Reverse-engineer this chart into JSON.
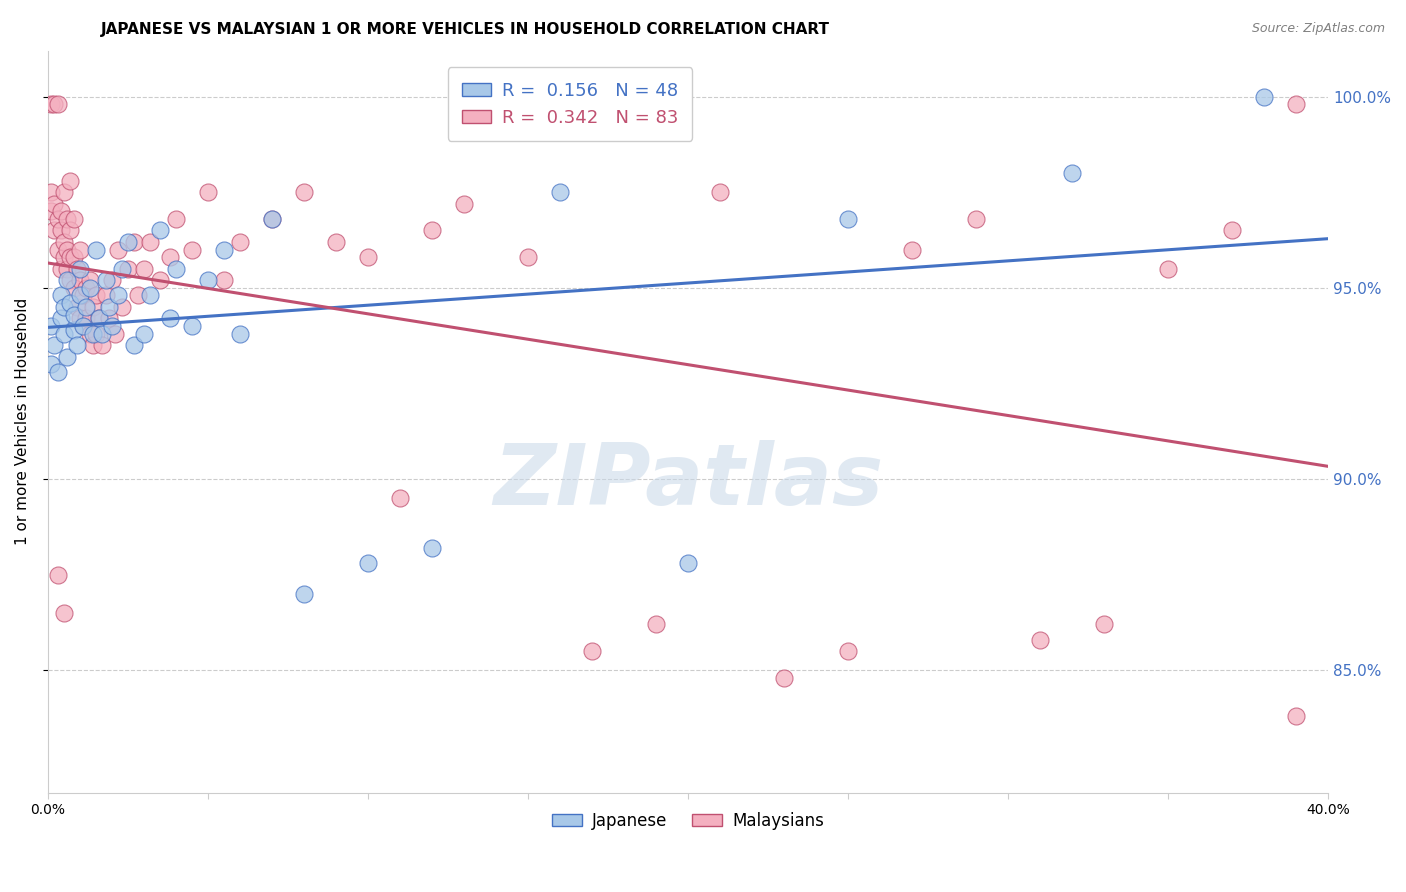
{
  "title": "JAPANESE VS MALAYSIAN 1 OR MORE VEHICLES IN HOUSEHOLD CORRELATION CHART",
  "source": "Source: ZipAtlas.com",
  "ylabel": "1 or more Vehicles in Household",
  "xlim": [
    0.0,
    0.4
  ],
  "ylim": [
    0.818,
    1.012
  ],
  "ytick_values": [
    0.85,
    0.9,
    0.95,
    1.0
  ],
  "ytick_labels": [
    "85.0%",
    "90.0%",
    "95.0%",
    "100.0%"
  ],
  "blue_face": "#a8c8e8",
  "blue_edge": "#4472c4",
  "pink_face": "#f4b0c0",
  "pink_edge": "#c05070",
  "blue_line": "#4472c4",
  "pink_line": "#c05070",
  "watermark_zip": "ZIP",
  "watermark_atlas": "atlas",
  "japanese_x": [
    0.001,
    0.001,
    0.002,
    0.003,
    0.004,
    0.004,
    0.005,
    0.005,
    0.006,
    0.006,
    0.007,
    0.008,
    0.008,
    0.009,
    0.01,
    0.01,
    0.011,
    0.012,
    0.013,
    0.014,
    0.015,
    0.016,
    0.017,
    0.018,
    0.019,
    0.02,
    0.022,
    0.023,
    0.025,
    0.027,
    0.03,
    0.032,
    0.035,
    0.038,
    0.04,
    0.045,
    0.05,
    0.055,
    0.06,
    0.07,
    0.08,
    0.1,
    0.12,
    0.16,
    0.2,
    0.25,
    0.32,
    0.38
  ],
  "japanese_y": [
    0.93,
    0.94,
    0.935,
    0.928,
    0.942,
    0.948,
    0.945,
    0.938,
    0.932,
    0.952,
    0.946,
    0.939,
    0.943,
    0.935,
    0.948,
    0.955,
    0.94,
    0.945,
    0.95,
    0.938,
    0.96,
    0.942,
    0.938,
    0.952,
    0.945,
    0.94,
    0.948,
    0.955,
    0.962,
    0.935,
    0.938,
    0.948,
    0.965,
    0.942,
    0.955,
    0.94,
    0.952,
    0.96,
    0.938,
    0.968,
    0.87,
    0.878,
    0.882,
    0.975,
    0.878,
    0.968,
    0.98,
    1.0
  ],
  "malaysian_x": [
    0.001,
    0.001,
    0.001,
    0.002,
    0.002,
    0.002,
    0.003,
    0.003,
    0.003,
    0.004,
    0.004,
    0.004,
    0.005,
    0.005,
    0.005,
    0.006,
    0.006,
    0.006,
    0.007,
    0.007,
    0.007,
    0.007,
    0.008,
    0.008,
    0.008,
    0.009,
    0.009,
    0.01,
    0.01,
    0.01,
    0.011,
    0.011,
    0.012,
    0.012,
    0.013,
    0.013,
    0.014,
    0.014,
    0.015,
    0.015,
    0.016,
    0.017,
    0.018,
    0.019,
    0.02,
    0.021,
    0.022,
    0.023,
    0.025,
    0.027,
    0.028,
    0.03,
    0.032,
    0.035,
    0.038,
    0.04,
    0.045,
    0.05,
    0.055,
    0.06,
    0.07,
    0.08,
    0.09,
    0.1,
    0.11,
    0.12,
    0.13,
    0.15,
    0.17,
    0.19,
    0.21,
    0.23,
    0.25,
    0.27,
    0.29,
    0.31,
    0.33,
    0.35,
    0.37,
    0.39,
    0.003,
    0.005,
    0.39
  ],
  "malaysian_y": [
    0.97,
    0.975,
    0.998,
    0.965,
    0.972,
    0.998,
    0.96,
    0.968,
    0.998,
    0.955,
    0.965,
    0.97,
    0.958,
    0.962,
    0.975,
    0.955,
    0.96,
    0.968,
    0.952,
    0.958,
    0.965,
    0.978,
    0.95,
    0.958,
    0.968,
    0.945,
    0.955,
    0.942,
    0.952,
    0.96,
    0.94,
    0.948,
    0.942,
    0.95,
    0.938,
    0.952,
    0.935,
    0.945,
    0.938,
    0.948,
    0.942,
    0.935,
    0.948,
    0.942,
    0.952,
    0.938,
    0.96,
    0.945,
    0.955,
    0.962,
    0.948,
    0.955,
    0.962,
    0.952,
    0.958,
    0.968,
    0.96,
    0.975,
    0.952,
    0.962,
    0.968,
    0.975,
    0.962,
    0.958,
    0.895,
    0.965,
    0.972,
    0.958,
    0.855,
    0.862,
    0.975,
    0.848,
    0.855,
    0.96,
    0.968,
    0.858,
    0.862,
    0.955,
    0.965,
    0.998,
    0.875,
    0.865,
    0.838
  ]
}
